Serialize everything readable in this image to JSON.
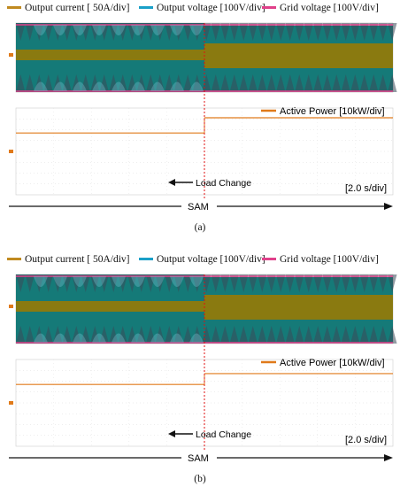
{
  "legend": {
    "current": "Output current [  50A/div]",
    "output_voltage": "Output voltage [100V/div]",
    "grid_voltage": "Grid voltage [100V/div]"
  },
  "colors": {
    "current": "#c08a20",
    "output_voltage": "#1aa0c8",
    "grid_voltage": "#e0408a",
    "power": "#e07a1a",
    "teal_fill": "#157a78",
    "olive_band": "#8a7a10",
    "marker": "#e01010"
  },
  "labels": {
    "power_legend": "Active Power [10kW/div]",
    "load_change": "Load Change",
    "timescale": "[2.0 s/div]",
    "sam": "SAM"
  },
  "captions": [
    "(a)",
    "(b)"
  ],
  "chart_data": [
    {
      "type": "line",
      "panel": "a",
      "x_unit": "s",
      "time_div_s": 2.0,
      "event_time_s": 10.0,
      "event_label": "Load Change",
      "series": [
        {
          "name": "Active Power [10kW/div]",
          "step": {
            "before": 1.7,
            "after": 3.1
          }
        }
      ]
    },
    {
      "type": "line",
      "panel": "b",
      "x_unit": "s",
      "time_div_s": 2.0,
      "event_time_s": 10.0,
      "event_label": "Load Change",
      "series": [
        {
          "name": "Active Power [10kW/div]",
          "step": {
            "before": 1.7,
            "after": 2.7
          }
        }
      ]
    }
  ]
}
